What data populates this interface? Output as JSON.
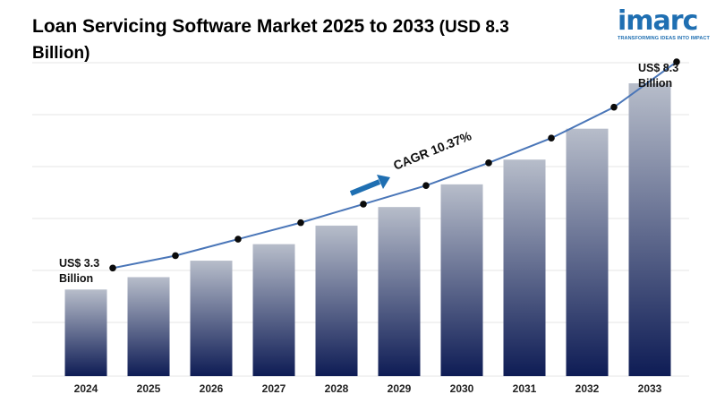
{
  "title": {
    "main": "Loan Servicing Software Market 2025 to 2033",
    "sub_open": " (USD 8.3",
    "sub_line2": "Billion",
    "sub_close": ")"
  },
  "logo": {
    "word": "imarc",
    "tagline": "TRANSFORMING IDEAS INTO IMPACT",
    "color": "#1f6fb2"
  },
  "chart_data": {
    "type": "bar",
    "categories": [
      "2024",
      "2025",
      "2026",
      "2027",
      "2028",
      "2029",
      "2030",
      "2031",
      "2032",
      "2033"
    ],
    "values": [
      3.3,
      3.6,
      4.0,
      4.4,
      4.85,
      5.3,
      5.85,
      6.45,
      7.2,
      8.3
    ],
    "ylim": [
      1.2,
      8.8
    ],
    "grid": true,
    "trend_line": true,
    "annotations": {
      "start_line1": "US$ 3.3",
      "start_line2": "Billion",
      "end_line1": "US$ 8.3",
      "end_line2": "Billion",
      "cagr": "CAGR 10.37%"
    },
    "colors": {
      "bar_top": "#b7bdca",
      "bar_bottom": "#0e1c55",
      "line": "#4a76b8",
      "marker": "#0b0b0b",
      "arrow": "#1f6fb2"
    }
  }
}
